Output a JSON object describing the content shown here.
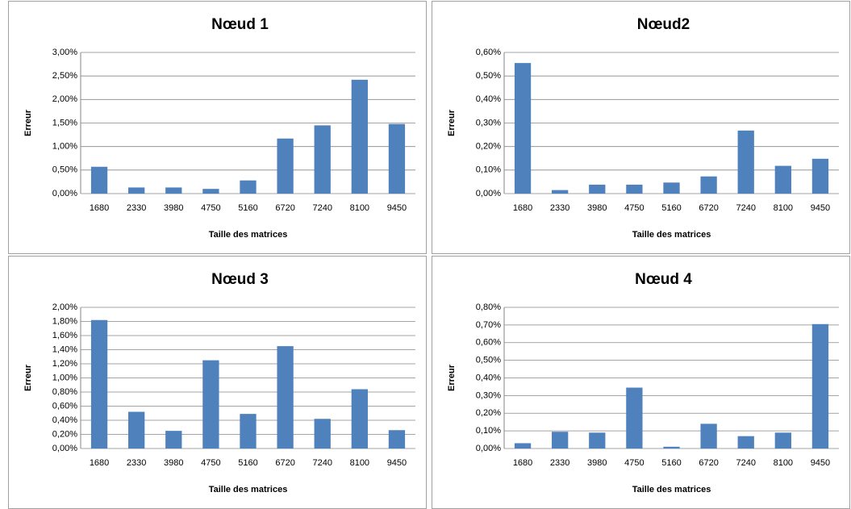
{
  "chart_data": [
    {
      "type": "bar",
      "title": "Nœud 1",
      "xlabel": "Taille des matrices",
      "ylabel": "Erreur",
      "color": "#4f81bd",
      "grid": true,
      "categories": [
        "1680",
        "2330",
        "3980",
        "4750",
        "5160",
        "6720",
        "7240",
        "8100",
        "9450"
      ],
      "values": [
        0.57,
        0.13,
        0.13,
        0.1,
        0.28,
        1.17,
        1.45,
        2.42,
        1.48
      ],
      "ylim": [
        0,
        3
      ],
      "yticks": [
        {
          "value": 0,
          "label": "0,00%"
        },
        {
          "value": 0.5,
          "label": "0,50%"
        },
        {
          "value": 1,
          "label": "1,00%"
        },
        {
          "value": 1.5,
          "label": "1,50%"
        },
        {
          "value": 2,
          "label": "2,00%"
        },
        {
          "value": 2.5,
          "label": "2,50%"
        },
        {
          "value": 3,
          "label": "3,00%"
        }
      ]
    },
    {
      "type": "bar",
      "title": "Nœud2",
      "xlabel": "Taille des matrices",
      "ylabel": "Erreur",
      "color": "#4f81bd",
      "grid": true,
      "categories": [
        "1680",
        "2330",
        "3980",
        "4750",
        "5160",
        "6720",
        "7240",
        "8100",
        "9450"
      ],
      "values": [
        0.555,
        0.015,
        0.038,
        0.038,
        0.047,
        0.073,
        0.268,
        0.118,
        0.148
      ],
      "ylim": [
        0,
        0.6
      ],
      "yticks": [
        {
          "value": 0,
          "label": "0,00%"
        },
        {
          "value": 0.1,
          "label": "0,10%"
        },
        {
          "value": 0.2,
          "label": "0,20%"
        },
        {
          "value": 0.3,
          "label": "0,30%"
        },
        {
          "value": 0.4,
          "label": "0,40%"
        },
        {
          "value": 0.5,
          "label": "0,50%"
        },
        {
          "value": 0.6,
          "label": "0,60%"
        }
      ]
    },
    {
      "type": "bar",
      "title": "Nœud 3",
      "xlabel": "Taille des matrices",
      "ylabel": "Erreur",
      "color": "#4f81bd",
      "grid": true,
      "categories": [
        "1680",
        "2330",
        "3980",
        "4750",
        "5160",
        "6720",
        "7240",
        "8100",
        "9450"
      ],
      "values": [
        1.82,
        0.52,
        0.25,
        1.25,
        0.49,
        1.45,
        0.42,
        0.84,
        0.26
      ],
      "ylim": [
        0,
        2
      ],
      "yticks": [
        {
          "value": 0,
          "label": "0,00%"
        },
        {
          "value": 0.2,
          "label": "0,20%"
        },
        {
          "value": 0.4,
          "label": "0,40%"
        },
        {
          "value": 0.6,
          "label": "0,60%"
        },
        {
          "value": 0.8,
          "label": "0,80%"
        },
        {
          "value": 1,
          "label": "1,00%"
        },
        {
          "value": 1.2,
          "label": "1,20%"
        },
        {
          "value": 1.4,
          "label": "1,40%"
        },
        {
          "value": 1.6,
          "label": "1,60%"
        },
        {
          "value": 1.8,
          "label": "1,80%"
        },
        {
          "value": 2,
          "label": "2,00%"
        }
      ]
    },
    {
      "type": "bar",
      "title": "Nœud 4",
      "xlabel": "Taille des matrices",
      "ylabel": "Erreur",
      "color": "#4f81bd",
      "grid": true,
      "categories": [
        "1680",
        "2330",
        "3980",
        "4750",
        "5160",
        "6720",
        "7240",
        "8100",
        "9450"
      ],
      "values": [
        0.03,
        0.095,
        0.09,
        0.345,
        0.01,
        0.14,
        0.07,
        0.09,
        0.705
      ],
      "ylim": [
        0,
        0.8
      ],
      "yticks": [
        {
          "value": 0,
          "label": "0,00%"
        },
        {
          "value": 0.1,
          "label": "0,10%"
        },
        {
          "value": 0.2,
          "label": "0,20%"
        },
        {
          "value": 0.3,
          "label": "0,30%"
        },
        {
          "value": 0.4,
          "label": "0,40%"
        },
        {
          "value": 0.5,
          "label": "0,50%"
        },
        {
          "value": 0.6,
          "label": "0,60%"
        },
        {
          "value": 0.7,
          "label": "0,70%"
        },
        {
          "value": 0.8,
          "label": "0,80%"
        }
      ]
    }
  ]
}
